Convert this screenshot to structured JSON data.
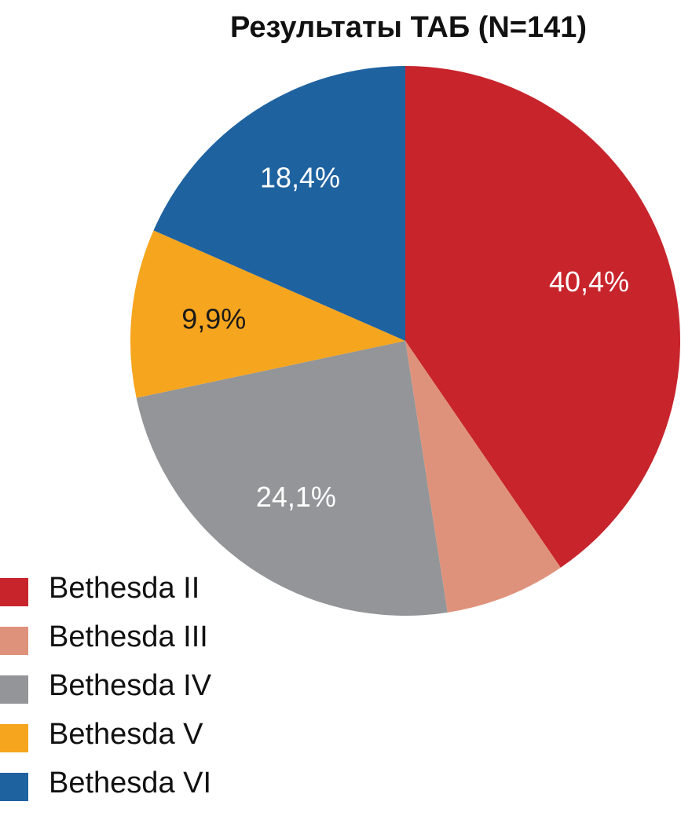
{
  "chart_data": {
    "type": "pie",
    "title": "Результаты ТАБ (N=141)",
    "slices": [
      {
        "name": "Bethesda II",
        "value": 40.4,
        "label": "40,4%",
        "color": "#c8242c",
        "label_color": "#ffffff"
      },
      {
        "name": "Bethesda III",
        "value": 7.1,
        "label": "",
        "color": "#df927b",
        "label_color": "#ffffff"
      },
      {
        "name": "Bethesda IV",
        "value": 24.1,
        "label": "24,1%",
        "color": "#939598",
        "label_color": "#ffffff"
      },
      {
        "name": "Bethesda V",
        "value": 9.9,
        "label": "9,9%",
        "color": "#f6a51e",
        "label_color": "#1a1a1a"
      },
      {
        "name": "Bethesda VI",
        "value": 18.4,
        "label": "18,4%",
        "color": "#1f62a0",
        "label_color": "#ffffff"
      }
    ],
    "start_angle_deg": 0,
    "direction": "clockwise",
    "legend_position": "bottom-left"
  }
}
